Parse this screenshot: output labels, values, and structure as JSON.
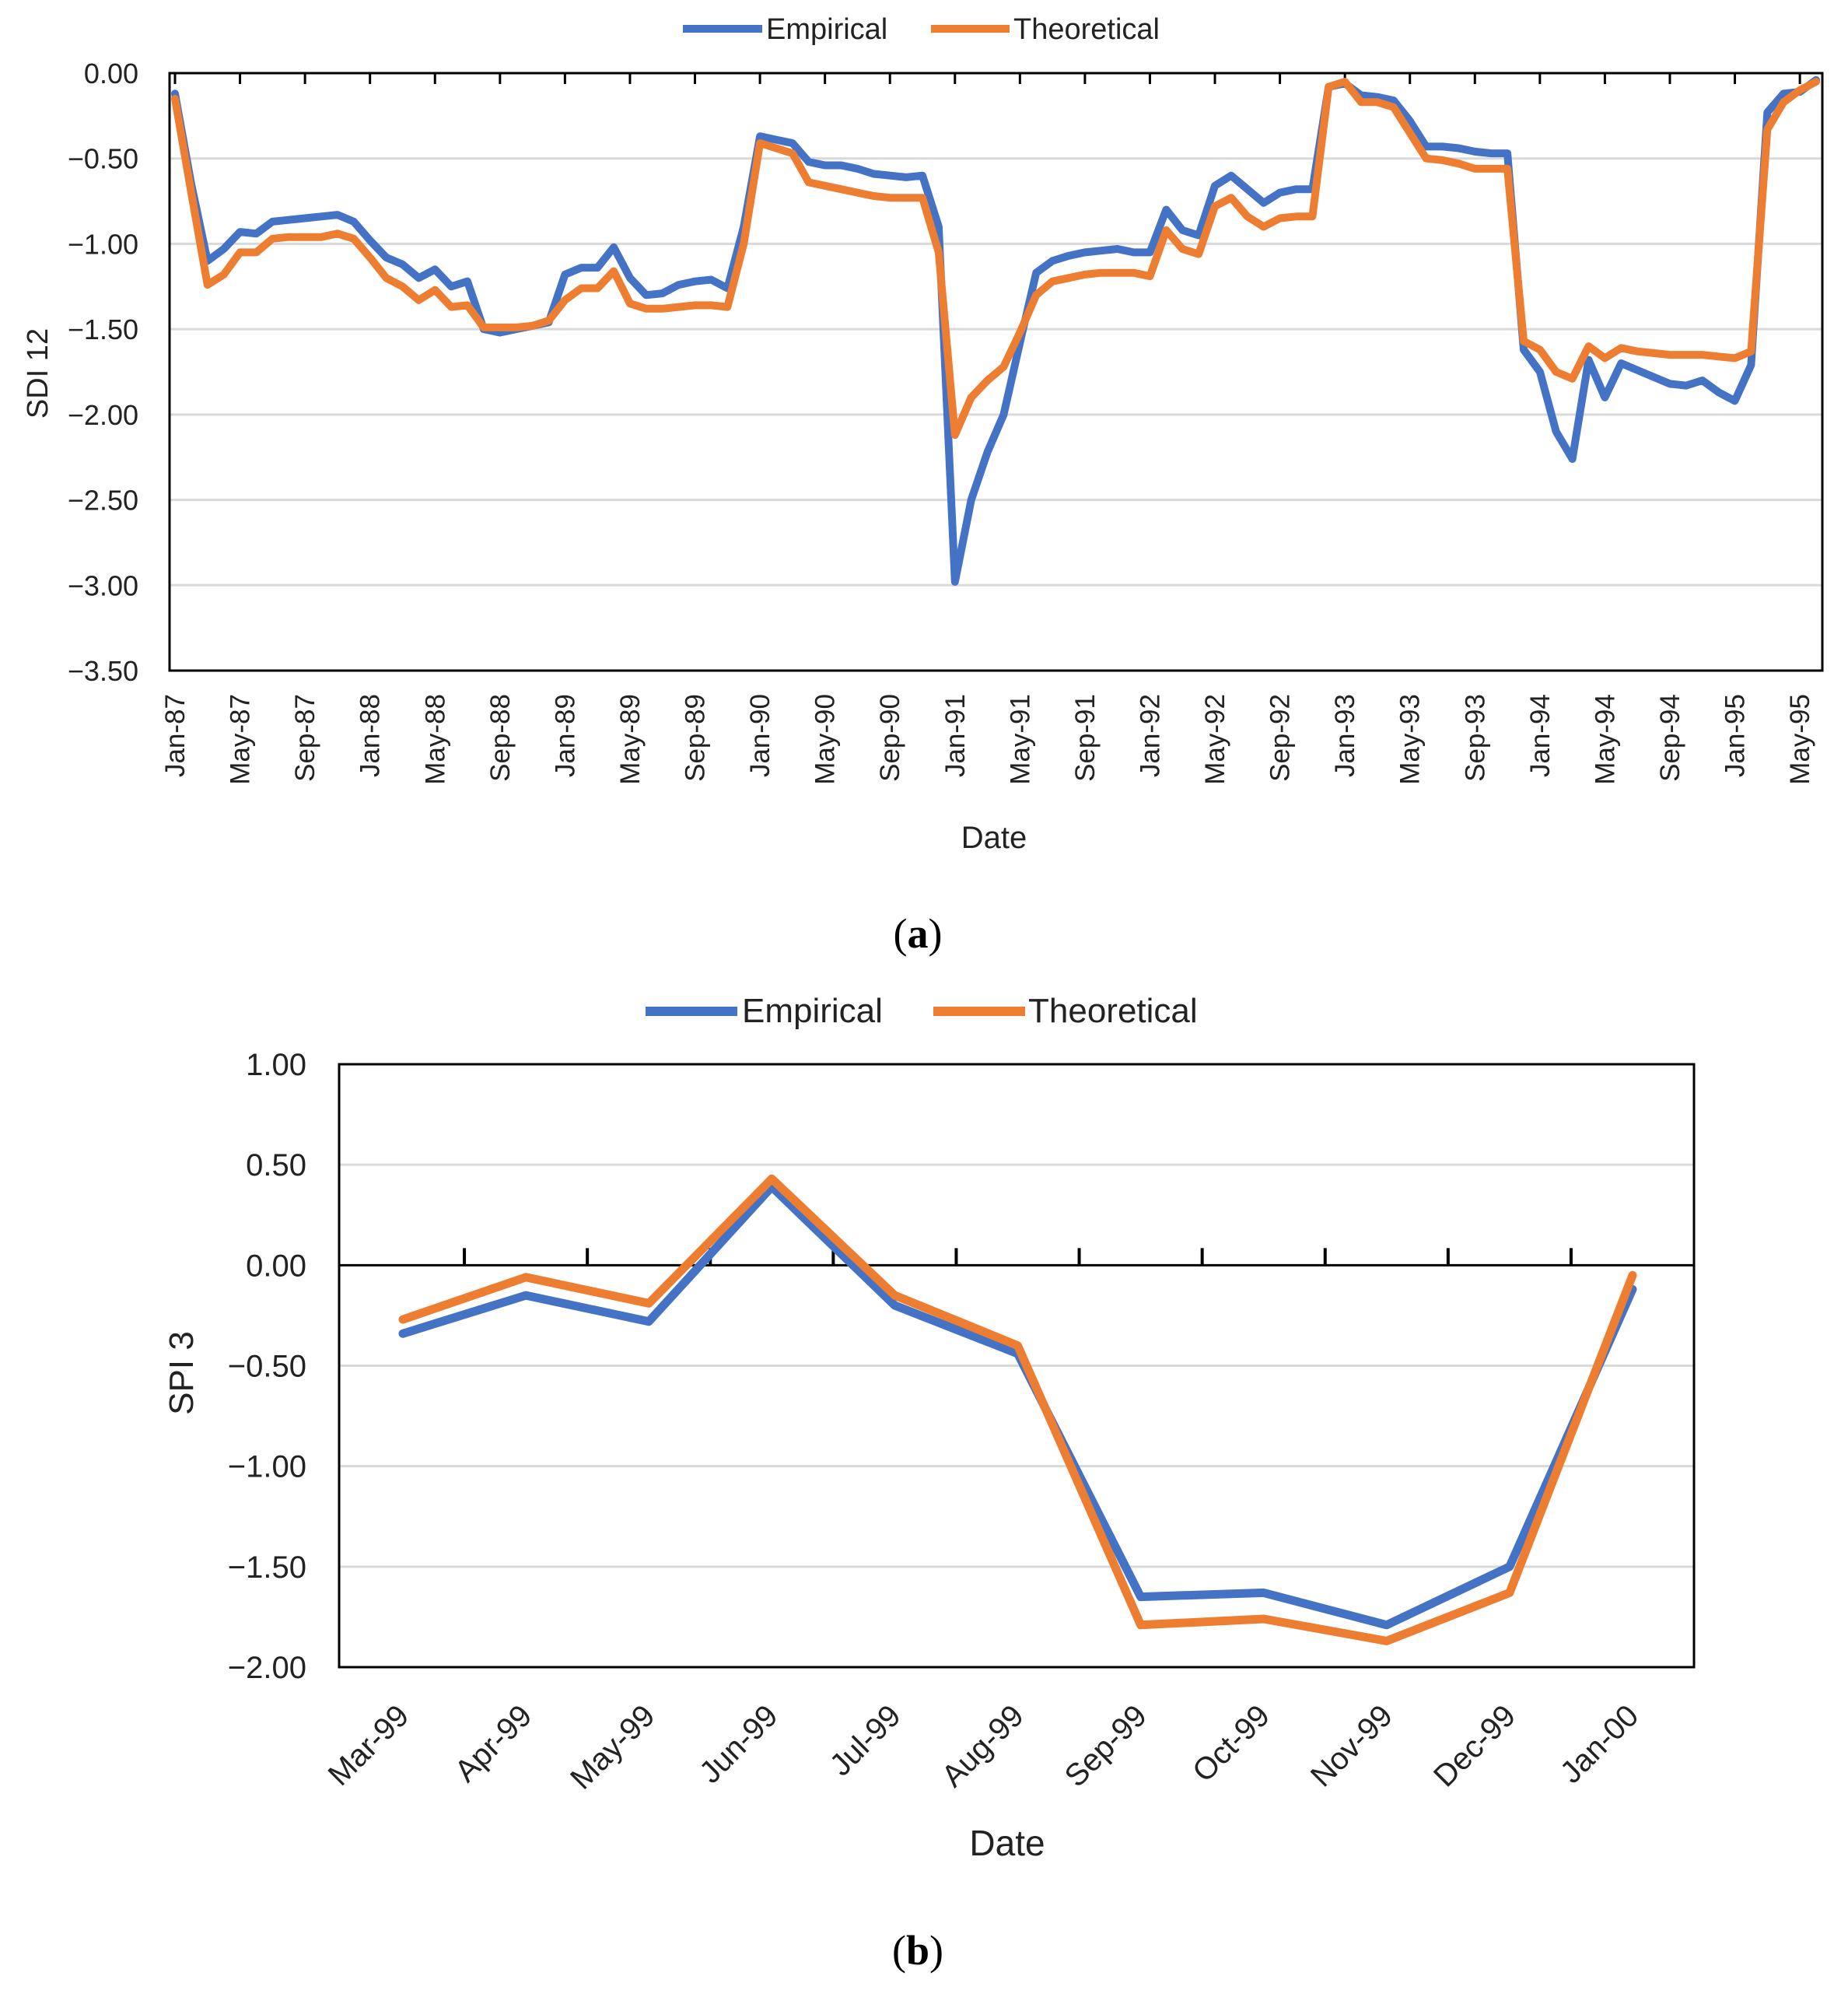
{
  "colors": {
    "empirical": "#4472C4",
    "theoretical": "#ED7D31",
    "grid": "#d9d9d9",
    "frame": "#000000"
  },
  "chart_data": [
    {
      "id": "a",
      "type": "line",
      "caption": "a",
      "xlabel": "Date",
      "ylabel": "SDI 12",
      "ylim": [
        -3.5,
        0.0
      ],
      "y_ticks": [
        0.0,
        -0.5,
        -1.0,
        -1.5,
        -2.0,
        -2.5,
        -3.0,
        -3.5
      ],
      "y_tick_labels": [
        "0.00",
        "−0.50",
        "−1.00",
        "−1.50",
        "−2.00",
        "−2.50",
        "−3.00",
        "−3.50"
      ],
      "legend": [
        "Empirical",
        "Theoretical"
      ],
      "legend_position": "top-center",
      "x_tick_labels": [
        "Jan-87",
        "May-87",
        "Sep-87",
        "Jan-88",
        "May-88",
        "Sep-88",
        "Jan-89",
        "May-89",
        "Sep-89",
        "Jan-90",
        "May-90",
        "Sep-90",
        "Jan-91",
        "May-91",
        "Sep-91",
        "Jan-92",
        "May-92",
        "Sep-92",
        "Jan-93",
        "May-93",
        "Sep-93",
        "Jan-94",
        "May-94",
        "Sep-94",
        "Jan-95",
        "May-95"
      ],
      "x_tick_index_step": 4,
      "x_count": 102,
      "series": [
        {
          "name": "Empirical",
          "values": [
            -0.12,
            -0.65,
            -1.1,
            -1.03,
            -0.93,
            -0.94,
            -0.87,
            -0.86,
            -0.85,
            -0.84,
            -0.83,
            -0.87,
            -0.98,
            -1.08,
            -1.12,
            -1.2,
            -1.15,
            -1.25,
            -1.22,
            -1.5,
            -1.52,
            -1.5,
            -1.48,
            -1.46,
            -1.18,
            -1.14,
            -1.14,
            -1.02,
            -1.2,
            -1.3,
            -1.29,
            -1.24,
            -1.22,
            -1.21,
            -1.26,
            -0.9,
            -0.37,
            -0.39,
            -0.41,
            -0.52,
            -0.54,
            -0.54,
            -0.56,
            -0.59,
            -0.6,
            -0.61,
            -0.6,
            -0.9,
            -2.98,
            -2.5,
            -2.22,
            -2.0,
            -1.58,
            -1.17,
            -1.1,
            -1.07,
            -1.05,
            -1.04,
            -1.03,
            -1.05,
            -1.05,
            -0.8,
            -0.92,
            -0.95,
            -0.66,
            -0.6,
            -0.68,
            -0.76,
            -0.7,
            -0.68,
            -0.68,
            -0.08,
            -0.06,
            -0.13,
            -0.14,
            -0.16,
            -0.28,
            -0.43,
            -0.43,
            -0.44,
            -0.46,
            -0.47,
            -0.47,
            -1.62,
            -1.75,
            -2.1,
            -2.26,
            -1.68,
            -1.9,
            -1.7,
            -1.74,
            -1.78,
            -1.82,
            -1.83,
            -1.8,
            -1.87,
            -1.92,
            -1.71,
            -0.23,
            -0.12,
            -0.11,
            -0.04
          ]
        },
        {
          "name": "Theoretical",
          "values": [
            -0.15,
            -0.7,
            -1.24,
            -1.18,
            -1.05,
            -1.05,
            -0.97,
            -0.96,
            -0.96,
            -0.96,
            -0.94,
            -0.97,
            -1.08,
            -1.2,
            -1.25,
            -1.33,
            -1.27,
            -1.37,
            -1.36,
            -1.49,
            -1.49,
            -1.49,
            -1.48,
            -1.45,
            -1.33,
            -1.26,
            -1.26,
            -1.16,
            -1.35,
            -1.38,
            -1.38,
            -1.37,
            -1.36,
            -1.36,
            -1.37,
            -1.0,
            -0.41,
            -0.44,
            -0.47,
            -0.64,
            -0.66,
            -0.68,
            -0.7,
            -0.72,
            -0.73,
            -0.73,
            -0.73,
            -1.05,
            -2.12,
            -1.9,
            -1.8,
            -1.72,
            -1.52,
            -1.3,
            -1.22,
            -1.2,
            -1.18,
            -1.17,
            -1.17,
            -1.17,
            -1.19,
            -0.92,
            -1.03,
            -1.06,
            -0.78,
            -0.73,
            -0.84,
            -0.9,
            -0.85,
            -0.84,
            -0.84,
            -0.08,
            -0.05,
            -0.17,
            -0.17,
            -0.2,
            -0.35,
            -0.5,
            -0.51,
            -0.53,
            -0.56,
            -0.56,
            -0.56,
            -1.57,
            -1.62,
            -1.75,
            -1.79,
            -1.6,
            -1.67,
            -1.61,
            -1.63,
            -1.64,
            -1.65,
            -1.65,
            -1.65,
            -1.66,
            -1.67,
            -1.63,
            -0.33,
            -0.17,
            -0.1,
            -0.05
          ]
        }
      ]
    },
    {
      "id": "b",
      "type": "line",
      "caption": "b",
      "xlabel": "Date",
      "ylabel": "SPI 3",
      "ylim": [
        -2.0,
        1.0
      ],
      "y_ticks": [
        1.0,
        0.5,
        0.0,
        -0.5,
        -1.0,
        -1.5,
        -2.0
      ],
      "y_tick_labels": [
        "1.00",
        "0.50",
        "0.00",
        "−0.50",
        "−1.00",
        "−1.50",
        "−2.00"
      ],
      "legend": [
        "Empirical",
        "Theoretical"
      ],
      "legend_position": "top-center",
      "categories": [
        "Mar-99",
        "Apr-99",
        "May-99",
        "Jun-99",
        "Jul-99",
        "Aug-99",
        "Sep-99",
        "Oct-99",
        "Nov-99",
        "Dec-99",
        "Jan-00"
      ],
      "series": [
        {
          "name": "Empirical",
          "values": [
            -0.34,
            -0.15,
            -0.28,
            0.39,
            -0.2,
            -0.44,
            -1.65,
            -1.63,
            -1.79,
            -1.5,
            -0.12
          ]
        },
        {
          "name": "Theoretical",
          "values": [
            -0.27,
            -0.06,
            -0.19,
            0.43,
            -0.15,
            -0.4,
            -1.79,
            -1.76,
            -1.87,
            -1.63,
            -0.05
          ]
        }
      ]
    }
  ]
}
